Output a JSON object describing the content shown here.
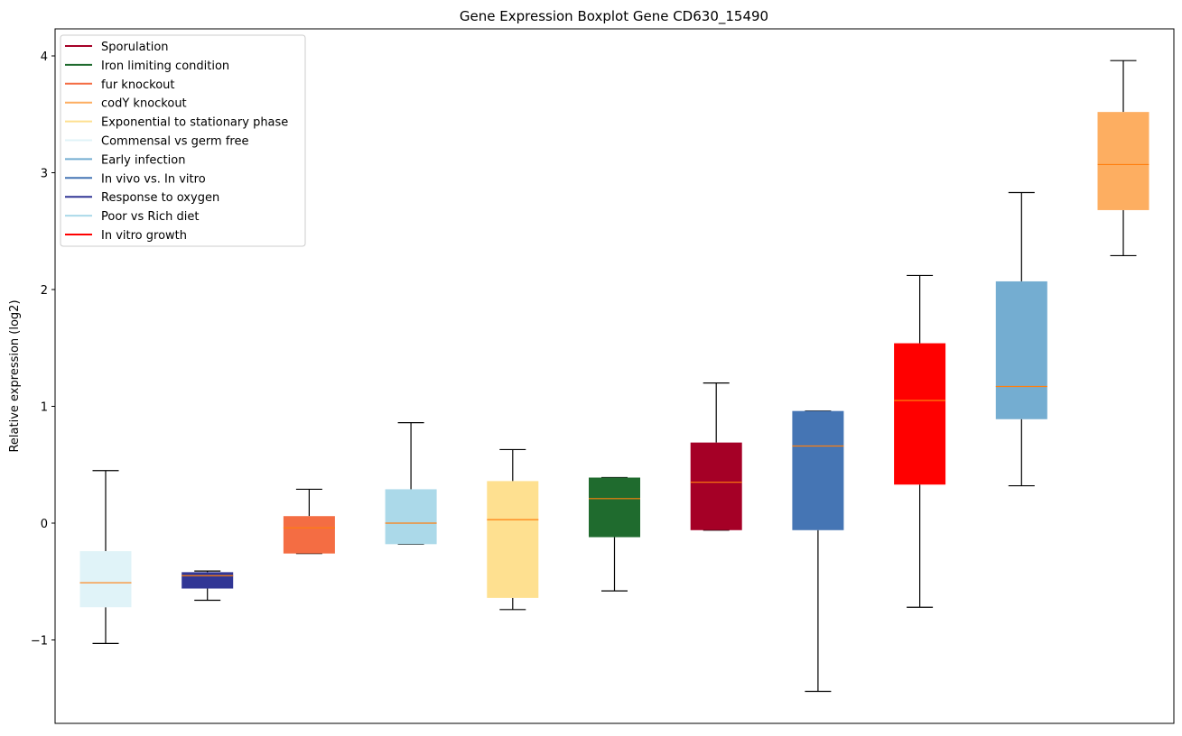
{
  "chart_data": {
    "type": "box",
    "title": "Gene Expression Boxplot Gene CD630_15490",
    "xlabel": "",
    "ylabel": "Relative expression (log2)",
    "ylim": [
      -1.71,
      4.24
    ],
    "yticks": [
      -1,
      0,
      1,
      2,
      3,
      4
    ],
    "ytick_labels": [
      "−1",
      "0",
      "1",
      "2",
      "3",
      "4"
    ],
    "grid": false,
    "legend_position": "top-left",
    "median_color": "#ff7f0e",
    "boxes": [
      {
        "name": "Commensal vs germ free",
        "color": "#e0f3f8",
        "whislo": -1.03,
        "q1": -0.72,
        "med": -0.51,
        "q3": -0.24,
        "whishi": 0.45
      },
      {
        "name": "Response to oxygen",
        "color": "#313695",
        "whislo": -0.66,
        "q1": -0.56,
        "med": -0.45,
        "q3": -0.42,
        "whishi": -0.41
      },
      {
        "name": "fur knockout",
        "color": "#f46d43",
        "whislo": -0.26,
        "q1": -0.26,
        "med": -0.04,
        "q3": 0.06,
        "whishi": 0.29
      },
      {
        "name": "Poor vs Rich diet",
        "color": "#abd9e9",
        "whislo": -0.18,
        "q1": -0.18,
        "med": 0.0,
        "q3": 0.29,
        "whishi": 0.86
      },
      {
        "name": "Exponential to stationary phase",
        "color": "#fee090",
        "whislo": -0.74,
        "q1": -0.64,
        "med": 0.03,
        "q3": 0.36,
        "whishi": 0.63
      },
      {
        "name": "Iron limiting condition",
        "color": "#1f6b2e",
        "whislo": -0.58,
        "q1": -0.12,
        "med": 0.21,
        "q3": 0.39,
        "whishi": 0.39
      },
      {
        "name": "Sporulation",
        "color": "#a50026",
        "whislo": -0.06,
        "q1": -0.06,
        "med": 0.35,
        "q3": 0.69,
        "whishi": 1.2
      },
      {
        "name": "In vivo vs. In vitro",
        "color": "#4575b4",
        "whislo": -1.44,
        "q1": -0.06,
        "med": 0.66,
        "q3": 0.96,
        "whishi": 0.96
      },
      {
        "name": "In vitro growth",
        "color": "#ff0000",
        "whislo": -0.72,
        "q1": 0.33,
        "med": 1.05,
        "q3": 1.54,
        "whishi": 2.12
      },
      {
        "name": "Early infection",
        "color": "#74add1",
        "whislo": 0.32,
        "q1": 0.89,
        "med": 1.17,
        "q3": 2.07,
        "whishi": 2.83
      },
      {
        "name": "codY knockout",
        "color": "#fdae61",
        "whislo": 2.29,
        "q1": 2.68,
        "med": 3.07,
        "q3": 3.52,
        "whishi": 3.96
      }
    ],
    "legend": [
      {
        "label": "Sporulation",
        "color": "#a50026"
      },
      {
        "label": "Iron limiting condition",
        "color": "#1f6b2e"
      },
      {
        "label": "fur knockout",
        "color": "#f46d43"
      },
      {
        "label": "codY knockout",
        "color": "#fdae61"
      },
      {
        "label": "Exponential to stationary phase",
        "color": "#fee090"
      },
      {
        "label": "Commensal vs germ free",
        "color": "#e0f3f8"
      },
      {
        "label": "Early infection",
        "color": "#74add1"
      },
      {
        "label": "In vivo vs. In vitro",
        "color": "#4575b4"
      },
      {
        "label": "Response to oxygen",
        "color": "#313695"
      },
      {
        "label": "Poor vs Rich diet",
        "color": "#abd9e9"
      },
      {
        "label": "In vitro growth",
        "color": "#ff0000"
      }
    ]
  }
}
